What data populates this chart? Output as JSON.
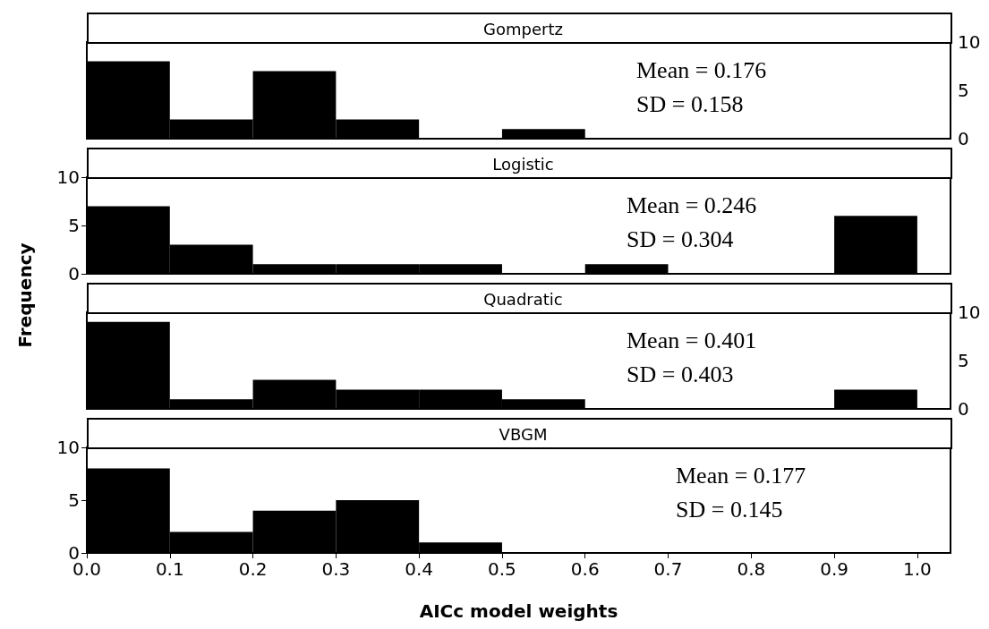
{
  "chart_data": [
    {
      "type": "histogram",
      "title": "Gompertz",
      "bins": [
        0,
        0.1,
        0.2,
        0.3,
        0.4,
        0.5,
        0.6,
        0.7,
        0.8,
        0.9,
        1.0
      ],
      "series": [
        {
          "values": [
            8,
            2,
            7,
            2,
            0,
            1,
            0,
            0,
            0,
            0
          ],
          "color": "#000000",
          "axis": "y2"
        }
      ],
      "xlim": [
        0,
        1.04
      ],
      "y2lim": [
        0,
        10
      ],
      "y2ticks": [
        0,
        5,
        10
      ],
      "tick_labels": "y",
      "annotations": [
        "Mean = 0.176",
        "SD = 0.158"
      ]
    },
    {
      "type": "histogram",
      "title": "Logistic",
      "ylabel": "Frequency",
      "bins": [
        0,
        0.1,
        0.2,
        0.3,
        0.4,
        0.5,
        0.6,
        0.7,
        0.8,
        0.9,
        1.0
      ],
      "series": [
        {
          "values": [
            7,
            3,
            1,
            1,
            1,
            0,
            1,
            0,
            0,
            6
          ],
          "color": "#000000"
        }
      ],
      "xlim": [
        0,
        1.04
      ],
      "ylim": [
        0,
        10
      ],
      "yticks": [
        0,
        5,
        10
      ],
      "tick_labels": "y",
      "annotations": [
        "Mean = 0.246",
        "SD = 0.304"
      ]
    },
    {
      "type": "histogram",
      "title": "Quadratic",
      "bins": [
        0,
        0.1,
        0.2,
        0.3,
        0.4,
        0.5,
        0.6,
        0.7,
        0.8,
        0.9,
        1.0
      ],
      "series": [
        {
          "values": [
            9,
            1,
            3,
            2,
            2,
            1,
            0,
            0,
            0,
            2
          ],
          "color": "#000000",
          "axis": "y2"
        }
      ],
      "xlim": [
        0,
        1.04
      ],
      "y2lim": [
        0,
        10
      ],
      "y2ticks": [
        0,
        5,
        10
      ],
      "tick_labels": "y",
      "annotations": [
        "Mean = 0.401",
        "SD = 0.403"
      ]
    },
    {
      "type": "histogram",
      "title": "VBGM",
      "xlabel": "AICc model weights",
      "bins": [
        0,
        0.1,
        0.2,
        0.3,
        0.4,
        0.5,
        0.6,
        0.7,
        0.8,
        0.9,
        1.0
      ],
      "series": [
        {
          "values": [
            8,
            2,
            4,
            5,
            1,
            0,
            0,
            0,
            0,
            0
          ],
          "color": "#000000"
        }
      ],
      "xlim": [
        0,
        1.04
      ],
      "xticks": [
        {
          "value": 0,
          "label": "0.0"
        },
        0.1,
        0.2,
        0.3,
        0.4,
        0.5,
        0.6,
        0.7,
        0.8,
        0.9,
        {
          "value": 1,
          "label": "1.0"
        }
      ],
      "ylim": [
        0,
        10
      ],
      "yticks": [
        0,
        5,
        10
      ],
      "annotations": [
        "Mean = 0.177",
        "SD = 0.145"
      ]
    }
  ]
}
